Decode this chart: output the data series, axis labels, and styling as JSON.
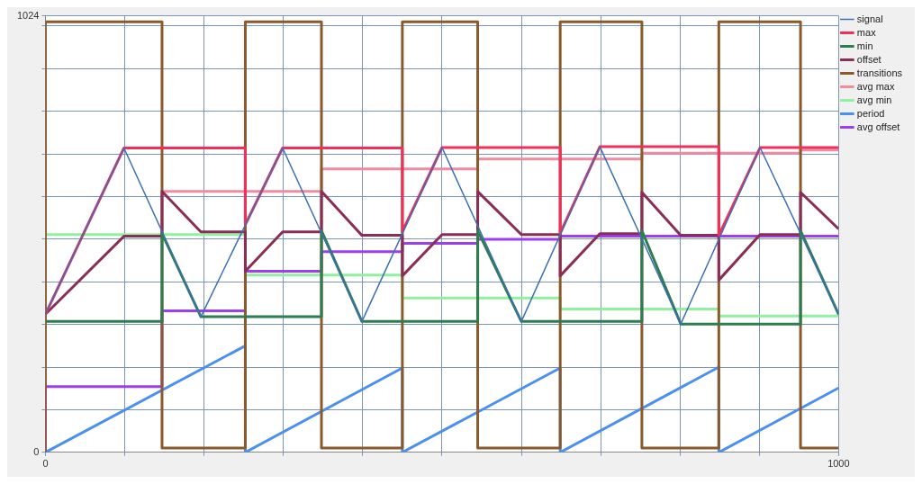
{
  "chart_data": {
    "type": "line",
    "xlim": [
      0,
      1000
    ],
    "ylim": [
      0,
      1024
    ],
    "xticks": [
      0,
      {
        "value": 100,
        "label": null
      },
      {
        "value": 200,
        "label": null
      },
      {
        "value": 300,
        "label": null
      },
      {
        "value": 400,
        "label": null
      },
      {
        "value": 500,
        "label": null
      },
      {
        "value": 600,
        "label": null
      },
      {
        "value": 700,
        "label": null
      },
      {
        "value": 800,
        "label": null
      },
      {
        "value": 900,
        "label": null
      },
      1000
    ],
    "yticks": [
      0,
      {
        "value": 100,
        "label": null
      },
      {
        "value": 200,
        "label": null
      },
      {
        "value": 300,
        "label": null
      },
      {
        "value": 400,
        "label": null
      },
      {
        "value": 500,
        "label": null
      },
      {
        "value": 600,
        "label": null
      },
      {
        "value": 700,
        "label": null
      },
      {
        "value": 800,
        "label": null
      },
      {
        "value": 900,
        "label": null
      },
      {
        "value": 1000,
        "label": null
      },
      1024
    ],
    "grid": true,
    "legend": "top right",
    "marker": "none",
    "line_style": "solid",
    "series": [
      {
        "name": "signal",
        "color": "#3d6fb4",
        "x": [
          0,
          99,
          196,
          299,
          399,
          500,
          600,
          699,
          801,
          901,
          1000
        ],
        "values": [
          324,
          714,
          318,
          714,
          307,
          715,
          307,
          717,
          301,
          715,
          324
        ]
      },
      {
        "name": "max",
        "color": "#f0305a",
        "x": [
          0,
          99,
          252,
          252,
          299,
          450,
          450,
          500,
          649,
          649,
          699,
          849,
          849,
          901,
          1000
        ],
        "values": [
          324,
          714,
          714,
          534,
          714,
          714,
          518,
          715,
          715,
          514,
          717,
          717,
          509,
          715,
          715
        ]
      },
      {
        "name": "min",
        "color": "#2e7d50",
        "x": [
          0,
          147,
          147,
          196,
          348,
          348,
          399,
          545,
          545,
          600,
          752,
          752,
          801,
          952,
          952,
          1000
        ],
        "values": [
          307,
          307,
          513,
          318,
          318,
          520,
          307,
          307,
          520,
          307,
          307,
          520,
          301,
          301,
          520,
          324
        ]
      },
      {
        "name": "offset",
        "color": "#8b2e55",
        "x": [
          0,
          99,
          147,
          147,
          196,
          252,
          252,
          299,
          348,
          348,
          399,
          450,
          450,
          500,
          545,
          545,
          600,
          649,
          649,
          699,
          752,
          752,
          801,
          849,
          849,
          901,
          952,
          952,
          1000
        ],
        "values": [
          324,
          507,
          507,
          612,
          517,
          517,
          425,
          517,
          517,
          612,
          509,
          509,
          414,
          511,
          511,
          612,
          511,
          511,
          414,
          513,
          513,
          610,
          509,
          509,
          404,
          511,
          511,
          610,
          524
        ]
      },
      {
        "name": "transitions",
        "color": "#8b5a2b",
        "x": [
          0,
          0,
          147,
          147,
          252,
          252,
          348,
          348,
          450,
          450,
          545,
          545,
          649,
          649,
          752,
          752,
          849,
          849,
          952,
          952,
          1000
        ],
        "values": [
          0,
          1010,
          1010,
          10,
          10,
          1010,
          1010,
          10,
          10,
          1010,
          1010,
          10,
          10,
          1010,
          1010,
          10,
          10,
          1010,
          1010,
          10,
          10
        ]
      },
      {
        "name": "avg max",
        "color": "#f08ca0",
        "x": [
          147,
          348,
          348,
          545,
          545,
          752,
          752,
          952,
          952,
          1000
        ],
        "values": [
          612,
          612,
          665,
          665,
          688,
          688,
          702,
          702,
          709,
          709
        ]
      },
      {
        "name": "avg min",
        "color": "#90f0a0",
        "x": [
          0,
          252,
          252,
          450,
          450,
          649,
          649,
          849,
          849,
          1000
        ],
        "values": [
          511,
          511,
          416,
          416,
          362,
          362,
          336,
          336,
          320,
          320
        ]
      },
      {
        "name": "period",
        "color": "#4a90f0",
        "x": [
          0,
          252,
          252,
          450,
          450,
          649,
          649,
          849,
          849,
          1000
        ],
        "values": [
          0,
          250,
          0,
          198,
          0,
          198,
          0,
          200,
          0,
          151
        ]
      },
      {
        "name": "avg offset",
        "color": "#9b40f0",
        "x": [
          0,
          0,
          147,
          147,
          252,
          252,
          348,
          348,
          450,
          450,
          545,
          545,
          649,
          649,
          1000
        ],
        "values": [
          0,
          154,
          154,
          332,
          332,
          425,
          425,
          471,
          471,
          490,
          490,
          500,
          500,
          507,
          507
        ]
      }
    ]
  }
}
